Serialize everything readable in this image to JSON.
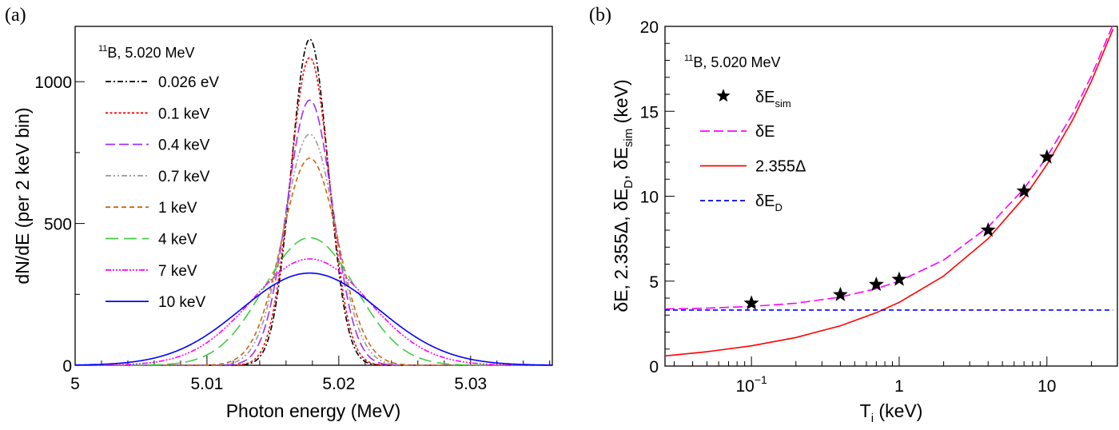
{
  "chart_data": [
    {
      "panel_label": "(a)",
      "type": "line",
      "xlabel": "Photon energy (MeV)",
      "ylabel": "dN/dE (per 2 keV bin)",
      "xlim": [
        5.0,
        5.0362
      ],
      "ylim": [
        0,
        1195
      ],
      "xticks": [
        "5",
        "5.01",
        "5.02",
        "5.03"
      ],
      "xtick_values": [
        5.0,
        5.01,
        5.02,
        5.03
      ],
      "yticks": [
        "0",
        "500",
        "1000"
      ],
      "ytick_values": [
        0,
        500,
        1000
      ],
      "grid": false,
      "legend_placement": "top-left",
      "annotation": {
        "sup": "11",
        "text": "B, 5.020 MeV"
      },
      "center_MeV": 5.0178,
      "series": [
        {
          "name": "0.026 eV",
          "color": "#000000",
          "dash": "dash-dot",
          "peak": 1150,
          "fwhm_keV": 3.3
        },
        {
          "name": "0.1 keV",
          "color": "#ff0000",
          "dash": "dotted",
          "peak": 1085,
          "fwhm_keV": 3.5
        },
        {
          "name": "0.4 keV",
          "color": "#9b30ff",
          "dash": "long-dash",
          "peak": 935,
          "fwhm_keV": 4.06
        },
        {
          "name": "0.7 keV",
          "color": "#999999",
          "dash": "dash-dot-dot",
          "peak": 815,
          "fwhm_keV": 4.56
        },
        {
          "name": "1 keV",
          "color": "#cc6611",
          "dash": "dashed",
          "peak": 730,
          "fwhm_keV": 5.0
        },
        {
          "name": "4 keV",
          "color": "#44cc44",
          "dash": "very-long-dash",
          "peak": 450,
          "fwhm_keV": 8.19
        },
        {
          "name": "7 keV",
          "color": "#ff00ff",
          "dash": "dash-dot-dot-dot",
          "peak": 375,
          "fwhm_keV": 10.45
        },
        {
          "name": "10 keV",
          "color": "#0000ff",
          "dash": "solid",
          "peak": 325,
          "fwhm_keV": 12.31
        }
      ]
    },
    {
      "panel_label": "(b)",
      "type": "line",
      "xscale": "log",
      "xlabel": {
        "main": "T",
        "sub": "i",
        "rest": " (keV)"
      },
      "ylabel_parts": [
        {
          "t": "δE, 2.355Δ, δE"
        },
        {
          "t": "D",
          "sub": true
        },
        {
          "t": ", δE"
        },
        {
          "t": "sim",
          "sub": true
        },
        {
          "t": " (keV)"
        }
      ],
      "xlim": [
        0.026,
        30
      ],
      "ylim": [
        0,
        20
      ],
      "xticks": [
        {
          "base": "10",
          "exp": "−1",
          "value": 0.1
        },
        {
          "base": "1",
          "value": 1
        },
        {
          "base": "10",
          "value": 10
        }
      ],
      "yticks": [
        "0",
        "5",
        "10",
        "15",
        "20"
      ],
      "ytick_values": [
        0,
        5,
        10,
        15,
        20
      ],
      "grid": false,
      "legend_placement": "top-left",
      "annotation": {
        "sup": "11",
        "text": "B, 5.020 MeV"
      },
      "x": [
        0.026,
        0.05,
        0.1,
        0.2,
        0.4,
        0.7,
        1,
        2,
        4,
        7,
        10,
        15,
        20,
        28
      ],
      "series": [
        {
          "name": "δE",
          "color": "#ff00ff",
          "dash": "long-dash",
          "values": [
            3.36,
            3.41,
            3.51,
            3.7,
            4.06,
            4.56,
            5.0,
            6.24,
            8.19,
            10.45,
            12.31,
            14.89,
            17.09,
            20.11
          ]
        },
        {
          "name": "2.355Δ",
          "color": "#ff0000",
          "dash": "solid",
          "values": [
            0.6,
            0.84,
            1.19,
            1.68,
            2.37,
            3.14,
            3.75,
            5.3,
            7.5,
            9.92,
            11.86,
            14.52,
            16.77,
            19.84
          ]
        },
        {
          "name": "δE",
          "name_sub": "D",
          "color": "#0000ff",
          "dash": "dashed",
          "values": [
            3.3,
            3.3,
            3.3,
            3.3,
            3.3,
            3.3,
            3.3,
            3.3,
            3.3,
            3.3,
            3.3,
            3.3,
            3.3,
            3.3
          ]
        }
      ],
      "points": {
        "name": "δE",
        "name_sub": "sim",
        "marker": "star",
        "color": "#000000",
        "x": [
          0.1,
          0.4,
          0.7,
          1,
          4,
          7,
          10
        ],
        "y": [
          3.7,
          4.2,
          4.8,
          5.1,
          8.0,
          10.3,
          12.3
        ]
      }
    }
  ]
}
